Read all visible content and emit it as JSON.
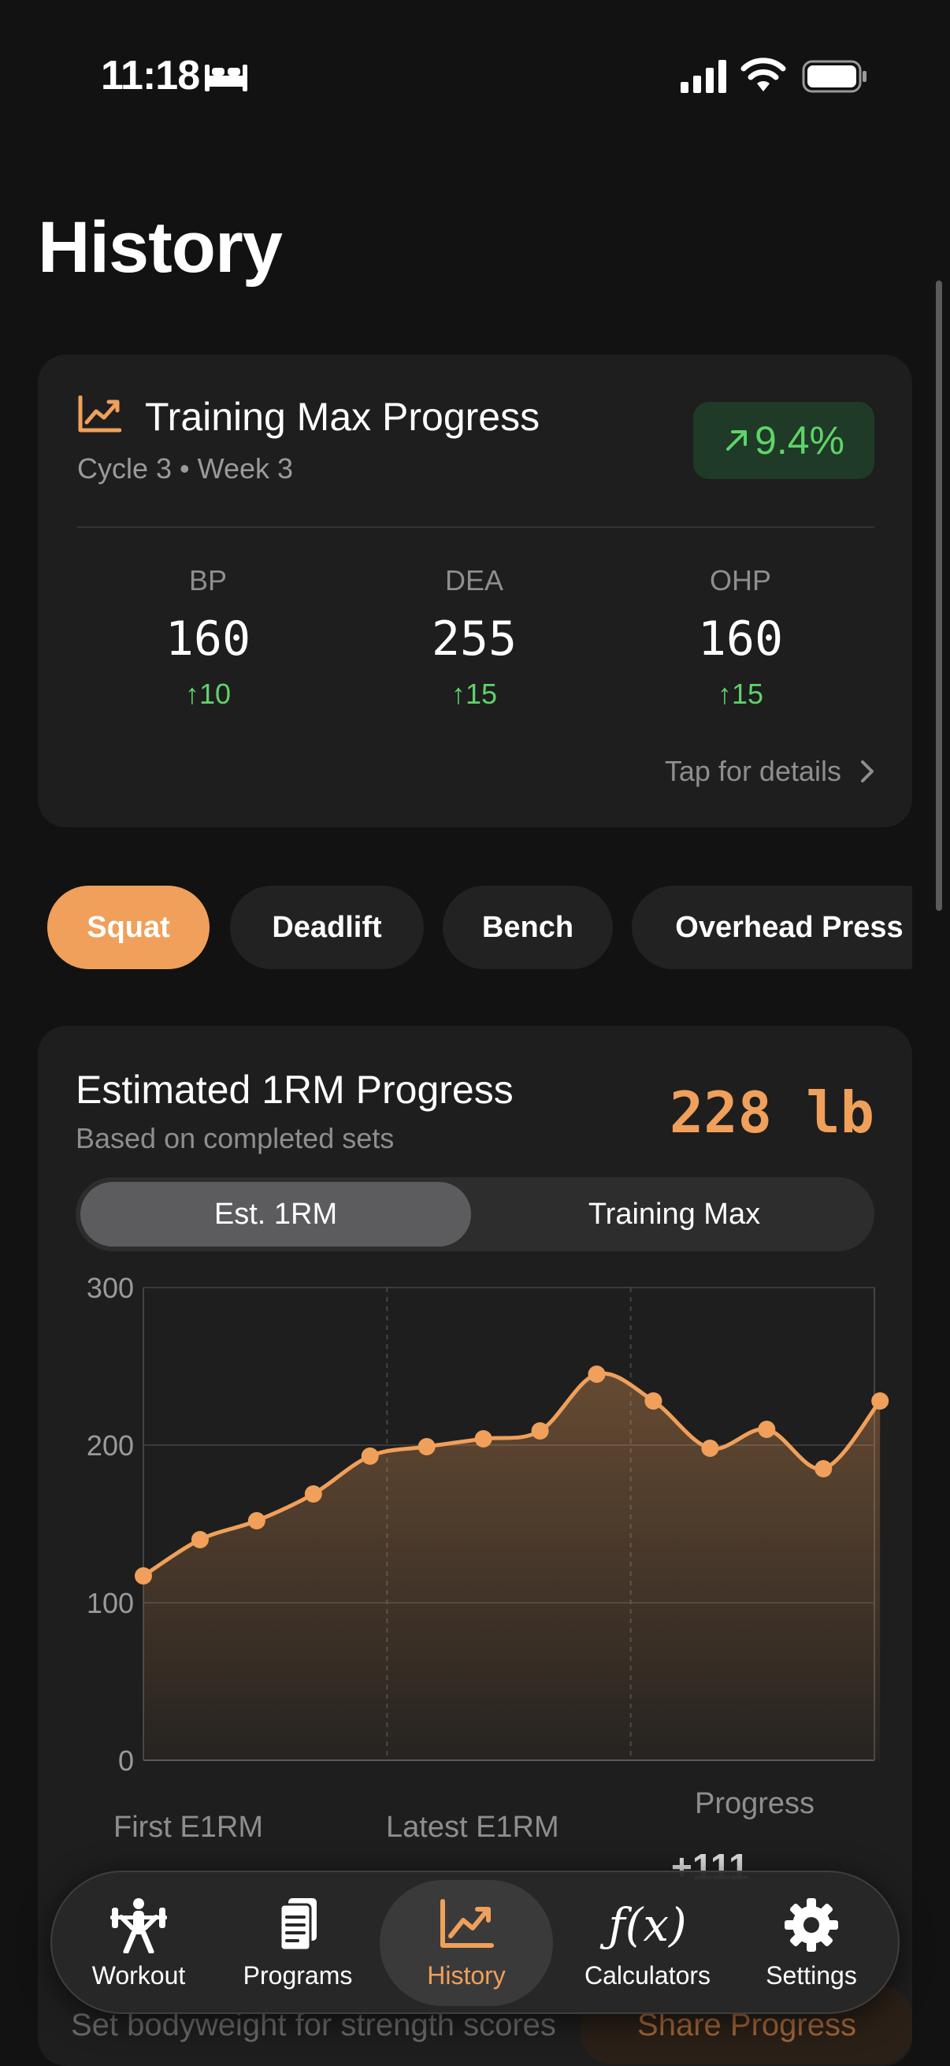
{
  "status_bar": {
    "time": "11:18"
  },
  "page": {
    "title": "History"
  },
  "training_max": {
    "title": "Training Max Progress",
    "subtitle": "Cycle 3 • Week 3",
    "badge": "9.4%",
    "stats": [
      {
        "label": "BP",
        "value": "160",
        "change": "10"
      },
      {
        "label": "DEA",
        "value": "255",
        "change": "15"
      },
      {
        "label": "OHP",
        "value": "160",
        "change": "15"
      }
    ],
    "details_link": "Tap for details"
  },
  "exercise_tabs": [
    {
      "label": "Squat",
      "active": true
    },
    {
      "label": "Deadlift",
      "active": false
    },
    {
      "label": "Bench",
      "active": false
    },
    {
      "label": "Overhead Press",
      "active": false
    }
  ],
  "e1rm": {
    "title": "Estimated 1RM Progress",
    "subtitle": "Based on completed sets",
    "current_value": "228 lb",
    "segments": [
      {
        "label": "Est. 1RM",
        "active": true
      },
      {
        "label": "Training Max",
        "active": false
      }
    ],
    "footer": {
      "first_label": "First E1RM",
      "latest_label": "Latest E1RM",
      "progress_label": "Progress",
      "progress_value": "+111"
    }
  },
  "chart_data": {
    "type": "area",
    "x": [
      1,
      2,
      3,
      4,
      5,
      6,
      7,
      8,
      9,
      10,
      11,
      12,
      13,
      14
    ],
    "values": [
      117,
      140,
      152,
      169,
      193,
      199,
      204,
      209,
      245,
      228,
      198,
      210,
      185,
      228
    ],
    "yticks": [
      0,
      100,
      200,
      300
    ],
    "ylim": [
      0,
      300
    ],
    "grid": true,
    "color": "#f0a05a"
  },
  "bodyweight": {
    "label": "Set bodyweight for strength scores"
  },
  "share": {
    "label": "Share Progress"
  },
  "tabbar": [
    {
      "label": "Workout",
      "icon": "weightlifter-icon",
      "active": false
    },
    {
      "label": "Programs",
      "icon": "document-icon",
      "active": false
    },
    {
      "label": "History",
      "icon": "chart-icon",
      "active": true
    },
    {
      "label": "Calculators",
      "icon": "function-icon",
      "active": false
    },
    {
      "label": "Settings",
      "icon": "gear-icon",
      "active": false
    }
  ],
  "colors": {
    "accent": "#f0a05a",
    "positive": "#5fd36a",
    "background": "#121212",
    "card": "#1e1e1e"
  }
}
